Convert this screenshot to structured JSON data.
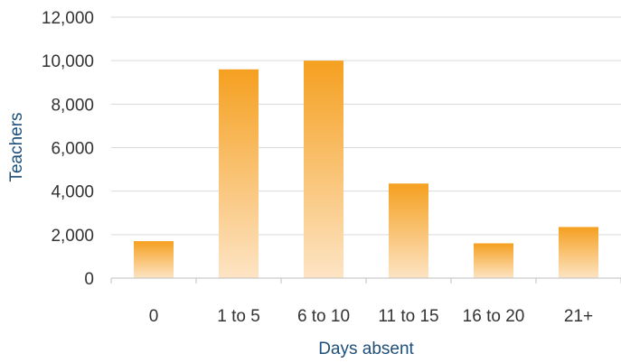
{
  "chart_data": {
    "type": "bar",
    "categories": [
      "0",
      "1 to 5",
      "6 to 10",
      "11 to 15",
      "16 to 20",
      "21+"
    ],
    "values": [
      1700,
      9600,
      10000,
      4350,
      1600,
      2350
    ],
    "title": "",
    "xlabel": "Days absent",
    "ylabel": "Teachers",
    "ylim": [
      0,
      12000
    ],
    "yticks": [
      "0",
      "2,000",
      "4,000",
      "6,000",
      "8,000",
      "10,000",
      "12,000"
    ],
    "grid": true,
    "legend": "none",
    "bar_color_top": "#f5a020",
    "bar_color_bottom": "#fde4c4",
    "gridline_color": "#d9d9d9"
  }
}
